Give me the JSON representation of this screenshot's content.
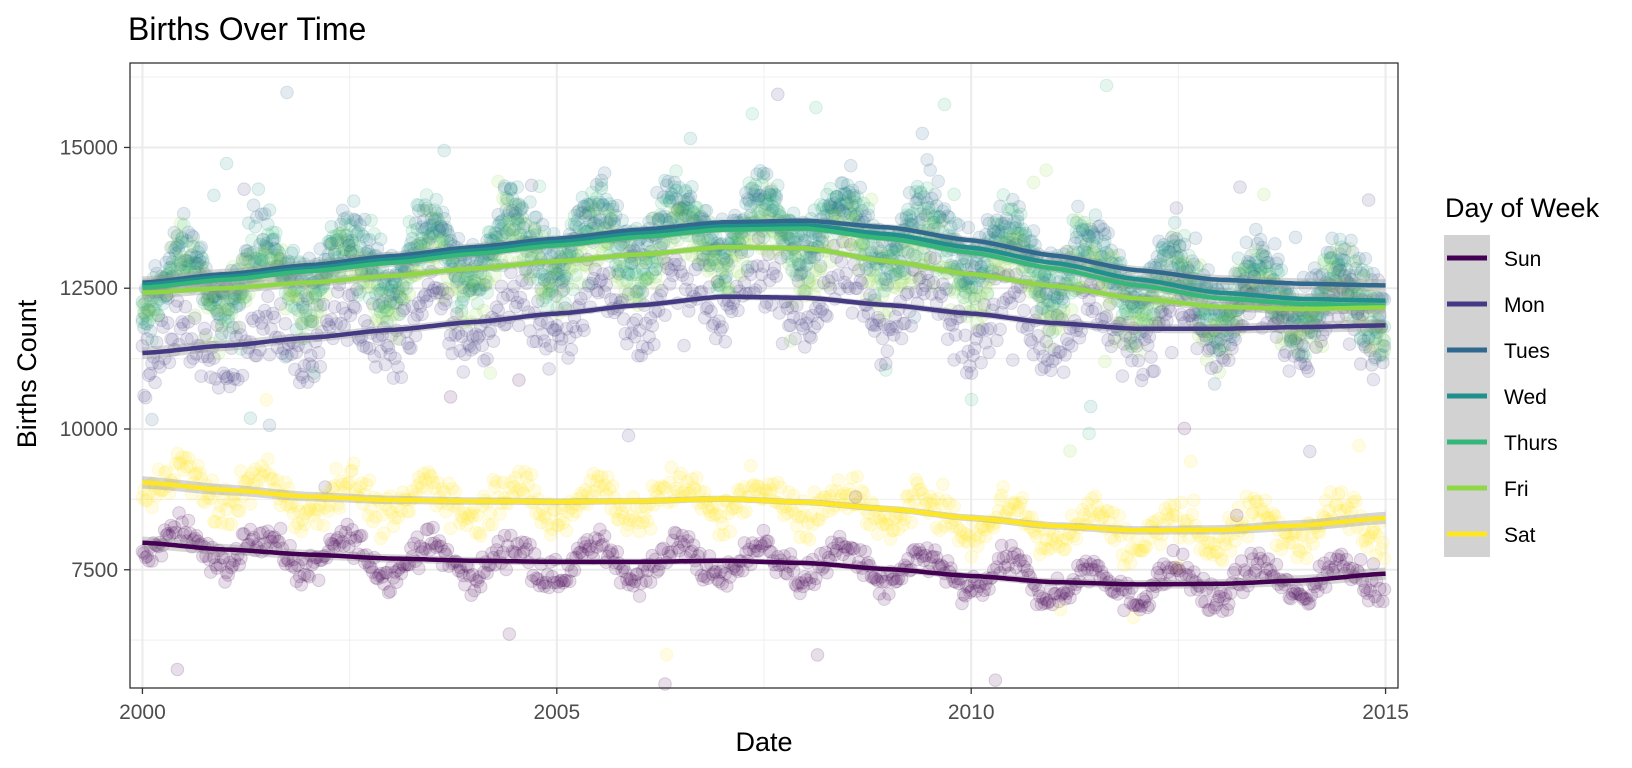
{
  "chart_data": {
    "type": "scatter",
    "title": "Births Over Time",
    "xlabel": "Date",
    "ylabel": "Births Count",
    "xlim": [
      1999.85,
      2015.15
    ],
    "ylim": [
      5400,
      16500
    ],
    "x_ticks": [
      2000,
      2005,
      2010,
      2015
    ],
    "x_tick_labels": [
      "2000",
      "2005",
      "2010",
      "2015"
    ],
    "y_ticks": [
      7500,
      10000,
      12500,
      15000
    ],
    "y_tick_labels": [
      "7500",
      "10000",
      "12500",
      "15000"
    ],
    "grid": true,
    "legend_title": "Day of Week",
    "legend_position": "right",
    "series": [
      {
        "name": "Sun",
        "color": "#440154",
        "x": [
          2000,
          2001,
          2002,
          2003,
          2004,
          2005,
          2006,
          2007,
          2008,
          2009,
          2010,
          2011,
          2012,
          2013,
          2014,
          2015
        ],
        "trend": [
          7980,
          7860,
          7770,
          7700,
          7660,
          7640,
          7640,
          7660,
          7620,
          7510,
          7390,
          7280,
          7240,
          7250,
          7310,
          7430
        ],
        "amp": 300,
        "spread": 140
      },
      {
        "name": "Mon",
        "color": "#443A83",
        "x": [
          2000,
          2001,
          2002,
          2003,
          2004,
          2005,
          2006,
          2007,
          2008,
          2009,
          2010,
          2011,
          2012,
          2013,
          2014,
          2015
        ],
        "trend": [
          11350,
          11480,
          11620,
          11760,
          11900,
          12050,
          12200,
          12350,
          12330,
          12200,
          12050,
          11880,
          11780,
          11780,
          11810,
          11840
        ],
        "amp": 450,
        "spread": 300
      },
      {
        "name": "Tues",
        "color": "#31688E",
        "x": [
          2000,
          2001,
          2002,
          2003,
          2004,
          2005,
          2006,
          2007,
          2008,
          2009,
          2010,
          2011,
          2012,
          2013,
          2014,
          2015
        ],
        "trend": [
          12600,
          12750,
          12910,
          13070,
          13230,
          13380,
          13540,
          13670,
          13700,
          13580,
          13350,
          13080,
          12820,
          12650,
          12580,
          12550
        ],
        "amp": 500,
        "spread": 300
      },
      {
        "name": "Wed",
        "color": "#21908C",
        "x": [
          2000,
          2001,
          2002,
          2003,
          2004,
          2005,
          2006,
          2007,
          2008,
          2009,
          2010,
          2011,
          2012,
          2013,
          2014,
          2015
        ],
        "trend": [
          12560,
          12700,
          12850,
          13010,
          13170,
          13320,
          13470,
          13600,
          13620,
          13460,
          13220,
          12950,
          12660,
          12420,
          12310,
          12280
        ],
        "amp": 500,
        "spread": 300
      },
      {
        "name": "Thurs",
        "color": "#35B779",
        "x": [
          2000,
          2001,
          2002,
          2003,
          2004,
          2005,
          2006,
          2007,
          2008,
          2009,
          2010,
          2011,
          2012,
          2013,
          2014,
          2015
        ],
        "trend": [
          12510,
          12650,
          12800,
          12950,
          13110,
          13260,
          13410,
          13540,
          13560,
          13380,
          13130,
          12850,
          12550,
          12320,
          12220,
          12190
        ],
        "amp": 500,
        "spread": 320
      },
      {
        "name": "Fri",
        "color": "#8FD744",
        "x": [
          2000,
          2001,
          2002,
          2003,
          2004,
          2005,
          2006,
          2007,
          2008,
          2009,
          2010,
          2011,
          2012,
          2013,
          2014,
          2015
        ],
        "trend": [
          12420,
          12500,
          12600,
          12720,
          12850,
          12980,
          13100,
          13230,
          13210,
          12980,
          12750,
          12540,
          12320,
          12170,
          12130,
          12160
        ],
        "amp": 480,
        "spread": 320
      },
      {
        "name": "Sat",
        "color": "#FDE725",
        "x": [
          2000,
          2001,
          2002,
          2003,
          2004,
          2005,
          2006,
          2007,
          2008,
          2009,
          2010,
          2011,
          2012,
          2013,
          2014,
          2015
        ],
        "trend": [
          9050,
          8920,
          8800,
          8740,
          8720,
          8710,
          8720,
          8760,
          8700,
          8580,
          8420,
          8280,
          8200,
          8210,
          8290,
          8420
        ],
        "amp": 320,
        "spread": 190
      }
    ]
  }
}
